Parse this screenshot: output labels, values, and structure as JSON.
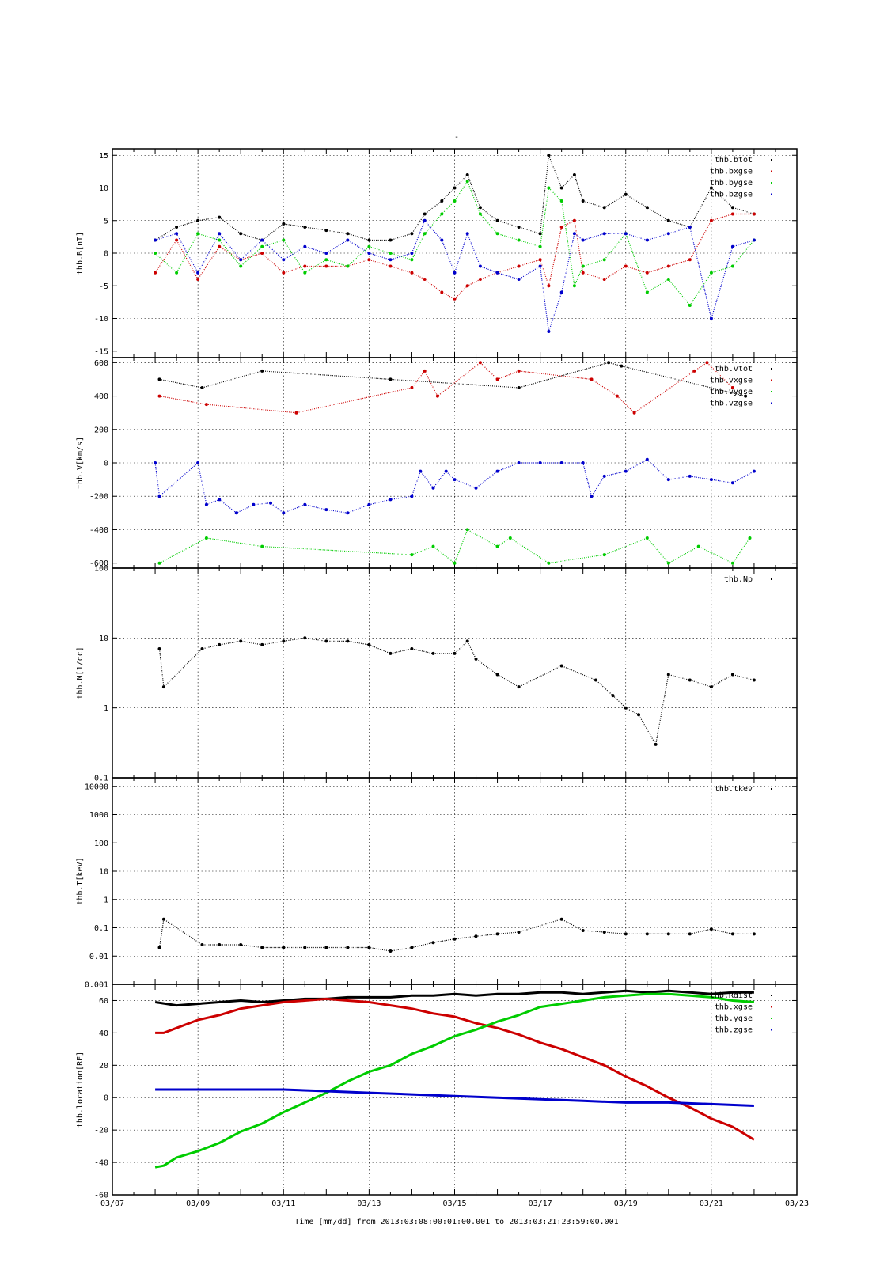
{
  "figure": {
    "title": "-",
    "xlabel": "Time [mm/dd]  from 2013:03:08:00:01:00.001  to  2013:03:21:23:59:00.001"
  },
  "chart_data": [
    {
      "type": "scatter",
      "ylabel": "thb.B[nT]",
      "yscale": "linear",
      "ylim": [
        -16,
        16
      ],
      "yticks": [
        -15,
        -10,
        -5,
        0,
        5,
        10,
        15
      ],
      "ytick_labels": [
        "-15",
        "-10",
        "-5",
        "0",
        "5",
        "10",
        "15"
      ],
      "grid": true,
      "legend_position": "top-right",
      "series": [
        {
          "name": "thb.btot",
          "color": "#000000",
          "x": [
            8.0,
            8.5,
            9.0,
            9.5,
            10.0,
            10.5,
            11.0,
            11.5,
            12.0,
            12.5,
            13.0,
            13.5,
            14.0,
            14.3,
            14.7,
            15.0,
            15.3,
            15.6,
            16.0,
            16.5,
            17.0,
            17.2,
            17.5,
            17.8,
            18.0,
            18.5,
            19.0,
            19.5,
            20.0,
            20.5,
            21.0,
            21.5,
            22.0
          ],
          "y": [
            2,
            4,
            5,
            5.5,
            3,
            2,
            4.5,
            4,
            3.5,
            3,
            2,
            2,
            3,
            6,
            8,
            10,
            12,
            7,
            5,
            4,
            3,
            15,
            10,
            12,
            8,
            7,
            9,
            7,
            5,
            4,
            10,
            7,
            6
          ]
        },
        {
          "name": "thb.bxgse",
          "color": "#cc0000",
          "x": [
            8.0,
            8.5,
            9.0,
            9.5,
            10.0,
            10.5,
            11.0,
            11.5,
            12.0,
            12.5,
            13.0,
            13.5,
            14.0,
            14.3,
            14.7,
            15.0,
            15.3,
            15.6,
            16.0,
            16.5,
            17.0,
            17.2,
            17.5,
            17.8,
            18.0,
            18.5,
            19.0,
            19.5,
            20.0,
            20.5,
            21.0,
            21.5,
            22.0
          ],
          "y": [
            -3,
            2,
            -4,
            1,
            -1,
            0,
            -3,
            -2,
            -2,
            -2,
            -1,
            -2,
            -3,
            -4,
            -6,
            -7,
            -5,
            -4,
            -3,
            -2,
            -1,
            -5,
            4,
            5,
            -3,
            -4,
            -2,
            -3,
            -2,
            -1,
            5,
            6,
            6
          ]
        },
        {
          "name": "thb.bygse",
          "color": "#00cc00",
          "x": [
            8.0,
            8.5,
            9.0,
            9.5,
            10.0,
            10.5,
            11.0,
            11.5,
            12.0,
            12.5,
            13.0,
            13.5,
            14.0,
            14.3,
            14.7,
            15.0,
            15.3,
            15.6,
            16.0,
            16.5,
            17.0,
            17.2,
            17.5,
            17.8,
            18.0,
            18.5,
            19.0,
            19.5,
            20.0,
            20.5,
            21.0,
            21.5,
            22.0
          ],
          "y": [
            0,
            -3,
            3,
            2,
            -2,
            1,
            2,
            -3,
            -1,
            -2,
            1,
            0,
            -1,
            3,
            6,
            8,
            11,
            6,
            3,
            2,
            1,
            10,
            8,
            -5,
            -2,
            -1,
            3,
            -6,
            -4,
            -8,
            -3,
            -2,
            2
          ]
        },
        {
          "name": "thb.bzgse",
          "color": "#0000cc",
          "x": [
            8.0,
            8.5,
            9.0,
            9.5,
            10.0,
            10.5,
            11.0,
            11.5,
            12.0,
            12.5,
            13.0,
            13.5,
            14.0,
            14.3,
            14.7,
            15.0,
            15.3,
            15.6,
            16.0,
            16.5,
            17.0,
            17.2,
            17.5,
            17.8,
            18.0,
            18.5,
            19.0,
            19.5,
            20.0,
            20.5,
            21.0,
            21.5,
            22.0
          ],
          "y": [
            2,
            3,
            -3,
            3,
            -1,
            2,
            -1,
            1,
            0,
            2,
            0,
            -1,
            0,
            5,
            2,
            -3,
            3,
            -2,
            -3,
            -4,
            -2,
            -12,
            -6,
            3,
            2,
            3,
            3,
            2,
            3,
            4,
            -10,
            1,
            2
          ]
        }
      ]
    },
    {
      "type": "scatter",
      "ylabel": "thb.V[km/s]",
      "yscale": "linear",
      "ylim": [
        -630,
        630
      ],
      "yticks": [
        -600,
        -400,
        -200,
        0,
        200,
        400,
        600
      ],
      "ytick_labels": [
        "-600",
        "-400",
        "-200",
        "0",
        "200",
        "400",
        "600"
      ],
      "grid": true,
      "legend_position": "top-right",
      "series": [
        {
          "name": "thb.vtot",
          "color": "#000000",
          "x": [
            8.1,
            9.1,
            10.5,
            13.5,
            16.5,
            18.6,
            18.9,
            21.8
          ],
          "y": [
            500,
            450,
            550,
            500,
            450,
            600,
            580,
            400
          ]
        },
        {
          "name": "thb.vxgse",
          "color": "#cc0000",
          "x": [
            8.1,
            9.2,
            11.3,
            14.0,
            14.3,
            14.6,
            15.6,
            16.0,
            16.5,
            18.2,
            18.8,
            19.2,
            20.6,
            20.9,
            21.5
          ],
          "y": [
            400,
            350,
            300,
            450,
            550,
            400,
            600,
            500,
            550,
            500,
            400,
            300,
            550,
            600,
            450
          ]
        },
        {
          "name": "thb.vygse",
          "color": "#00cc00",
          "x": [
            8.1,
            9.2,
            10.5,
            14.0,
            14.5,
            15.0,
            15.3,
            16.0,
            16.3,
            17.2,
            18.5,
            19.5,
            20.0,
            20.7,
            21.5,
            21.9
          ],
          "y": [
            -600,
            -450,
            -500,
            -550,
            -500,
            -600,
            -400,
            -500,
            -450,
            -600,
            -550,
            -450,
            -600,
            -500,
            -600,
            -450
          ]
        },
        {
          "name": "thb.vzgse",
          "color": "#0000cc",
          "x": [
            8.0,
            8.1,
            9.0,
            9.2,
            9.5,
            9.9,
            10.3,
            10.7,
            11.0,
            11.5,
            12.0,
            12.5,
            13.0,
            13.5,
            14.0,
            14.2,
            14.5,
            14.8,
            15.0,
            15.5,
            16.0,
            16.5,
            17.0,
            17.5,
            18.0,
            18.2,
            18.5,
            19.0,
            19.5,
            20.0,
            20.5,
            21.0,
            21.5,
            22.0
          ],
          "y": [
            0,
            -200,
            0,
            -250,
            -220,
            -300,
            -250,
            -240,
            -300,
            -250,
            -280,
            -300,
            -250,
            -220,
            -200,
            -50,
            -150,
            -50,
            -100,
            -150,
            -50,
            0,
            0,
            0,
            0,
            -200,
            -80,
            -50,
            20,
            -100,
            -80,
            -100,
            -120,
            -50
          ]
        }
      ]
    },
    {
      "type": "scatter",
      "ylabel": "thb.N[1/cc]",
      "yscale": "log",
      "ylim": [
        0.1,
        100
      ],
      "yticks": [
        0.1,
        1,
        10,
        100
      ],
      "ytick_labels": [
        "0.1",
        "1",
        "10",
        "100"
      ],
      "grid": true,
      "legend_position": "top-right",
      "series": [
        {
          "name": "thb.Np",
          "color": "#000000",
          "x": [
            8.1,
            8.2,
            9.1,
            9.5,
            10.0,
            10.5,
            11.0,
            11.5,
            12.0,
            12.5,
            13.0,
            13.5,
            14.0,
            14.5,
            15.0,
            15.3,
            15.5,
            16.0,
            16.5,
            17.5,
            18.3,
            18.7,
            19.0,
            19.3,
            19.7,
            20.0,
            20.5,
            21.0,
            21.5,
            22.0
          ],
          "y": [
            7,
            2,
            7,
            8,
            9,
            8,
            9,
            10,
            9,
            9,
            8,
            6,
            7,
            6,
            6,
            9,
            5,
            3,
            2,
            4,
            2.5,
            1.5,
            1,
            0.8,
            0.3,
            3,
            2.5,
            2,
            3,
            2.5
          ]
        }
      ]
    },
    {
      "type": "scatter",
      "ylabel": "thb.T[keV]",
      "yscale": "log",
      "ylim": [
        0.001,
        20000
      ],
      "yticks": [
        0.001,
        0.01,
        0.1,
        1,
        10,
        100,
        1000,
        10000
      ],
      "ytick_labels": [
        "0.001",
        "0.01",
        "0.1",
        "1",
        "10",
        "100",
        "1000",
        "10000"
      ],
      "grid": true,
      "legend_position": "top-right",
      "series": [
        {
          "name": "thb.tkev",
          "color": "#000000",
          "x": [
            8.1,
            8.2,
            9.1,
            9.5,
            10.0,
            10.5,
            11.0,
            11.5,
            12.0,
            12.5,
            13.0,
            13.5,
            14.0,
            14.5,
            15.0,
            15.5,
            16.0,
            16.5,
            17.5,
            18.0,
            18.5,
            19.0,
            19.5,
            20.0,
            20.5,
            21.0,
            21.5,
            22.0
          ],
          "y": [
            0.02,
            0.2,
            0.025,
            0.025,
            0.025,
            0.02,
            0.02,
            0.02,
            0.02,
            0.02,
            0.02,
            0.015,
            0.02,
            0.03,
            0.04,
            0.05,
            0.06,
            0.07,
            0.2,
            0.08,
            0.07,
            0.06,
            0.06,
            0.06,
            0.06,
            0.09,
            0.06,
            0.06
          ]
        }
      ]
    },
    {
      "type": "line",
      "ylabel": "thb.location[RE]",
      "yscale": "linear",
      "ylim": [
        -60,
        70
      ],
      "yticks": [
        -60,
        -40,
        -20,
        0,
        20,
        40,
        60
      ],
      "ytick_labels": [
        "-60",
        "-40",
        "-20",
        "0",
        "20",
        "40",
        "60"
      ],
      "grid": true,
      "legend_position": "top-right",
      "series": [
        {
          "name": "thb.Rdist",
          "color": "#000000",
          "x": [
            8.0,
            8.5,
            9.0,
            9.5,
            10.0,
            10.5,
            11.0,
            11.5,
            12.0,
            12.5,
            13.0,
            13.5,
            14.0,
            14.5,
            15.0,
            15.5,
            16.0,
            16.5,
            17.0,
            17.5,
            18.0,
            18.5,
            19.0,
            19.5,
            20.0,
            20.5,
            21.0,
            21.5,
            22.0
          ],
          "y": [
            59,
            57,
            58,
            59,
            60,
            59,
            60,
            61,
            61,
            62,
            62,
            62,
            63,
            63,
            64,
            63,
            64,
            64,
            65,
            65,
            64,
            65,
            66,
            65,
            66,
            65,
            64,
            65,
            65
          ]
        },
        {
          "name": "thb.xgse",
          "color": "#cc0000",
          "x": [
            8.0,
            8.2,
            8.5,
            9.0,
            9.5,
            10.0,
            10.5,
            11.0,
            11.5,
            12.0,
            12.5,
            13.0,
            13.5,
            14.0,
            14.5,
            15.0,
            15.5,
            16.0,
            16.5,
            17.0,
            17.5,
            18.0,
            18.5,
            19.0,
            19.5,
            20.0,
            20.5,
            21.0,
            21.5,
            22.0
          ],
          "y": [
            40,
            40,
            43,
            48,
            51,
            55,
            57,
            59,
            60,
            61,
            60,
            59,
            57,
            55,
            52,
            50,
            46,
            43,
            39,
            34,
            30,
            25,
            20,
            13,
            7,
            0,
            -6,
            -13,
            -18,
            -26
          ]
        },
        {
          "name": "thb.ygse",
          "color": "#00cc00",
          "x": [
            8.0,
            8.2,
            8.5,
            9.0,
            9.5,
            10.0,
            10.5,
            11.0,
            11.5,
            12.0,
            12.5,
            13.0,
            13.5,
            14.0,
            14.5,
            15.0,
            15.5,
            16.0,
            16.5,
            17.0,
            17.5,
            18.0,
            18.5,
            19.0,
            19.5,
            20.0,
            20.5,
            21.0,
            21.5,
            22.0
          ],
          "y": [
            -43,
            -42,
            -37,
            -33,
            -28,
            -21,
            -16,
            -9,
            -3,
            3,
            10,
            16,
            20,
            27,
            32,
            38,
            42,
            47,
            51,
            56,
            58,
            60,
            62,
            63,
            64,
            64,
            63,
            62,
            60,
            59
          ]
        },
        {
          "name": "thb.zgse",
          "color": "#0000cc",
          "x": [
            8.0,
            9.0,
            10.0,
            11.0,
            12.0,
            13.0,
            14.0,
            15.0,
            16.0,
            17.0,
            18.0,
            19.0,
            20.0,
            21.0,
            22.0
          ],
          "y": [
            5,
            5,
            5,
            5,
            4,
            3,
            2,
            1,
            0,
            -1,
            -2,
            -3,
            -3,
            -4,
            -5
          ]
        }
      ]
    }
  ],
  "x_axis": {
    "xlim": [
      7,
      23
    ],
    "ticks": [
      7,
      9,
      11,
      13,
      15,
      17,
      19,
      21,
      23
    ],
    "tick_labels": [
      "03/07",
      "03/09",
      "03/11",
      "03/13",
      "03/15",
      "03/17",
      "03/19",
      "03/21",
      "03/23"
    ]
  }
}
